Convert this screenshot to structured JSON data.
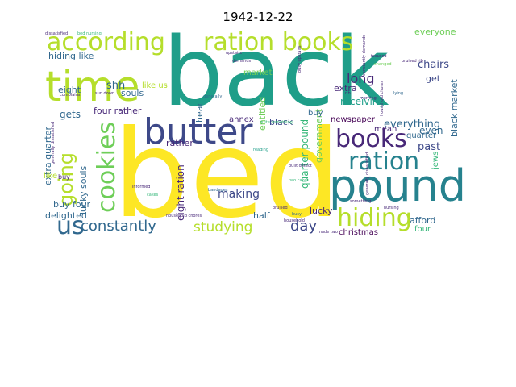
{
  "title": "1942-12-22",
  "palette": {
    "yellow": "#fde725",
    "lime": "#b5de2b",
    "green": "#6ece58",
    "seagreen": "#35b779",
    "teal": "#1f9e89",
    "cyan": "#26828e",
    "steel": "#31688e",
    "indigo": "#3e4989",
    "purple": "#482878",
    "darkpurple": "#440154"
  },
  "words": {
    "back": "back",
    "bed": "bed",
    "time": "time",
    "pound": "pound",
    "butter": "butter",
    "according": "according",
    "ration_books": "ration books",
    "cookies": "cookies",
    "books": "books",
    "ration": "ration",
    "hiding": "hiding",
    "going": "going",
    "us": "us",
    "constantly": "constantly",
    "studying": "studying",
    "making": "making",
    "day": "day",
    "long": "long",
    "everything": "everything",
    "past": "past",
    "quarter_pound": "quarter pound",
    "eight_ration": "eight ration",
    "lucky_souls": "lucky souls",
    "extra_quarter": "extra quarter",
    "hiding_like": "hiding like",
    "shh": "shh",
    "souls": "souls",
    "like_us": "like us",
    "eight": "eight",
    "gets": "gets",
    "four_rather": "four rather",
    "chairs": "chairs",
    "everyone": "everyone",
    "get": "get",
    "black_market": "black market",
    "receiving": "receiving",
    "extra": "extra",
    "newspaper": "newspaper",
    "even": "even",
    "quarter": "quarter",
    "mean": "mean",
    "jews": "jews",
    "afford": "afford",
    "christmas": "christmas",
    "four": "four",
    "half": "half",
    "lucky": "lucky",
    "rather": "rather",
    "annex": "annex",
    "black": "black",
    "government": "government",
    "entitled": "entitled",
    "market": "market",
    "hear": "hear",
    "buy": "buy",
    "buy_four": "buy four",
    "delighted": "delighted",
    "like": "like",
    "buy_small": "buy",
    "dissatisfied": "dissatisfied",
    "bed_nursing": "bed nursing",
    "generally": "generally",
    "generally_dissatisfied": "generally dissatisfied",
    "constantly_demands": "constantly demands",
    "busy_upstairs": "busy upstairs",
    "household_chores": "household chores",
    "bandages": "bandages",
    "informed": "informed",
    "cakes": "cakes",
    "nursing": "nursing",
    "focused": "focused",
    "changed": "changed",
    "lying": "lying",
    "upstairs": "upstairs",
    "demands": "demands",
    "quite_something": "quite something",
    "reading": "reading",
    "made_two": "made two",
    "two_cakes": "two cakes",
    "bruised": "bruised",
    "bruised_rib": "bruised rib",
    "rib": "rib",
    "morning": "morning",
    "complains": "complains",
    "sun_down": "sun down",
    "badly": "badly",
    "reason": "reason",
    "made": "made",
    "two": "two",
    "busy": "busy",
    "household": "household",
    "built_detect": "built detect",
    "something": "something",
    "better": "better",
    "makes": "makes",
    "still": "still"
  }
}
